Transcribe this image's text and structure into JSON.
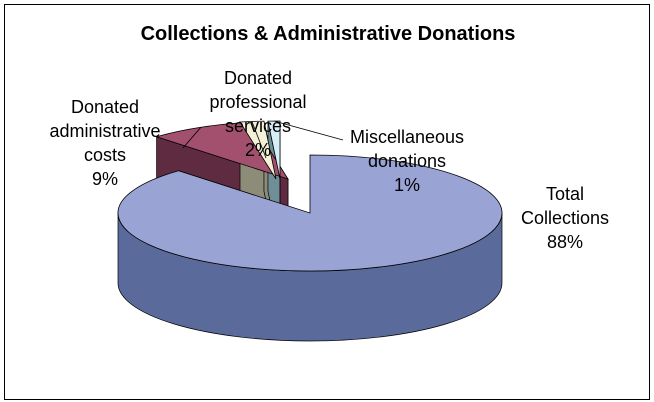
{
  "chart_data": {
    "type": "pie",
    "title": "Collections & Administrative Donations",
    "slices": [
      {
        "name": "Total Collections",
        "label_lines": [
          "Total",
          "Collections",
          "88%"
        ],
        "value": 88,
        "color": "#9aa4d4",
        "side_color": "#5a6a9a"
      },
      {
        "name": "Donated administrative costs",
        "label_lines": [
          "Donated",
          "administrative",
          "costs",
          "9%"
        ],
        "value": 9,
        "color": "#a3506f",
        "side_color": "#5e2b40"
      },
      {
        "name": "Donated professional services",
        "label_lines": [
          "Donated",
          "professional",
          "services",
          "2%"
        ],
        "value": 2,
        "color": "#f3f1d6",
        "side_color": "#8c8c78"
      },
      {
        "name": "Miscellaneous donations",
        "label_lines": [
          "Miscellaneous",
          "donations",
          "1%"
        ],
        "value": 1,
        "color": "#d6eef6",
        "side_color": "#6f8e98"
      }
    ],
    "legend": "none",
    "style": "3d-exploded"
  }
}
